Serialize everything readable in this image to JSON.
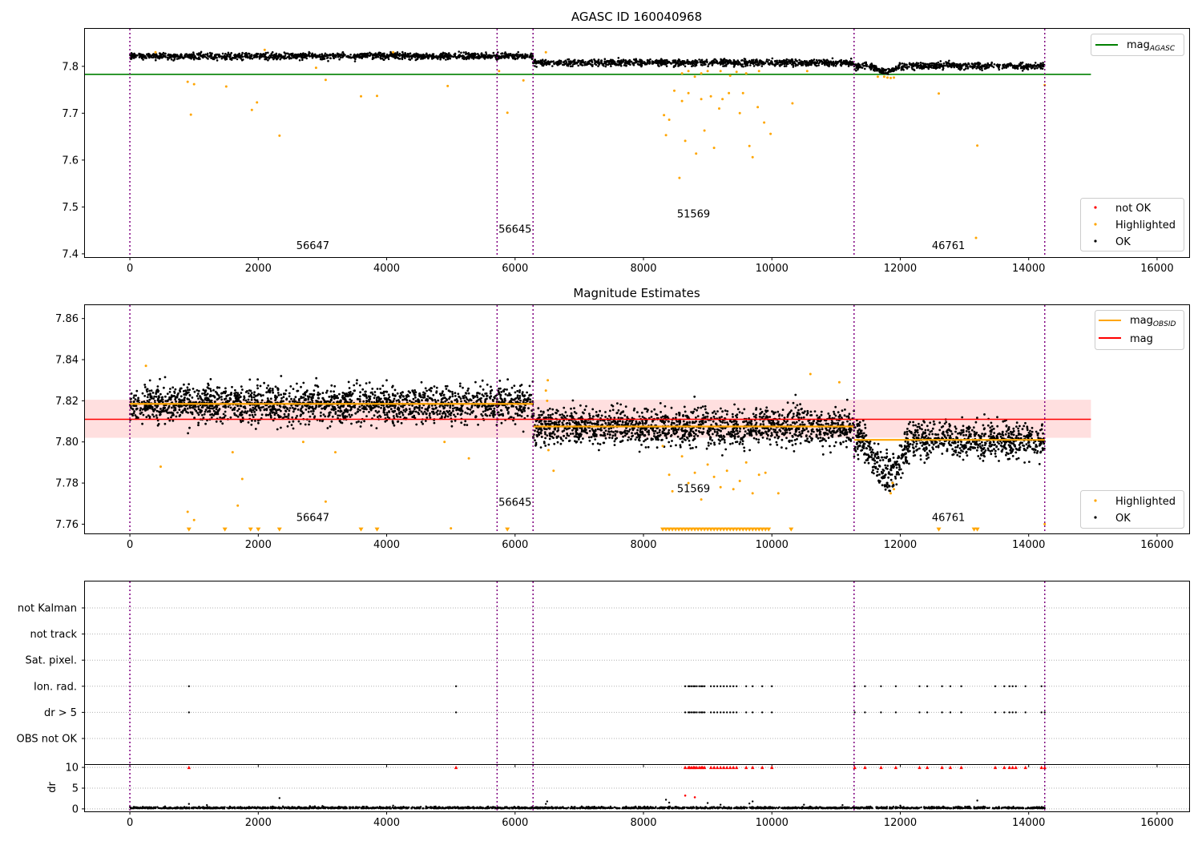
{
  "figure": {
    "colors": {
      "ok": "#000000",
      "highlighted": "#ffa500",
      "not_ok": "#ff0000",
      "agasc_line": "#008000",
      "mag_line": "#ff0000",
      "obsid_line": "#ffa500",
      "boundary": "#800080",
      "band": "#ffc0c0"
    },
    "obsid_boundaries": [
      0,
      5720,
      6280,
      11280,
      14250
    ]
  },
  "chart_data": [
    {
      "type": "scatter",
      "title": "AGASC ID 160040968",
      "xlabel": "",
      "ylabel": "",
      "xlim": [
        -700,
        16500
      ],
      "ylim": [
        7.393,
        7.88
      ],
      "xticks": [
        0,
        2000,
        4000,
        6000,
        8000,
        10000,
        12000,
        14000,
        16000
      ],
      "yticks": [
        7.4,
        7.5,
        7.6,
        7.7,
        7.8
      ],
      "grid": false,
      "legend_placement": "top-right and bottom-right",
      "legends": {
        "upper": [
          "mag_AGASC"
        ],
        "lower": [
          "not OK",
          "Highlighted",
          "OK"
        ]
      },
      "reference_lines": [
        {
          "name": "mag_AGASC",
          "y": 7.783,
          "x": [
            -700,
            14970
          ]
        }
      ],
      "obs_segments": [
        {
          "obsid": "56647",
          "x": [
            0,
            5720
          ],
          "mag": 7.822
        },
        {
          "obsid": "56645",
          "x": [
            5720,
            6280
          ],
          "mag": 7.822
        },
        {
          "obsid": "51569",
          "x": [
            6280,
            11280
          ],
          "mag": 7.808
        },
        {
          "obsid": "46761",
          "x": [
            11280,
            14250
          ],
          "mag": 7.801
        }
      ],
      "annotations": [
        {
          "text": "56647",
          "x": 2850,
          "y": 7.41
        },
        {
          "text": "56645",
          "x": 6000,
          "y": 7.445
        },
        {
          "text": "51569",
          "x": 8780,
          "y": 7.478
        },
        {
          "text": "46761",
          "x": 12750,
          "y": 7.41
        }
      ],
      "highlighted_points": [
        [
          900,
          7.767
        ],
        [
          950,
          7.697
        ],
        [
          1000,
          7.762
        ],
        [
          1500,
          7.757
        ],
        [
          1900,
          7.707
        ],
        [
          1980,
          7.723
        ],
        [
          2330,
          7.652
        ],
        [
          2900,
          7.797
        ],
        [
          3050,
          7.771
        ],
        [
          3600,
          7.736
        ],
        [
          3850,
          7.737
        ],
        [
          4950,
          7.758
        ],
        [
          5750,
          7.79
        ],
        [
          5880,
          7.701
        ],
        [
          6130,
          7.77
        ],
        [
          8320,
          7.696
        ],
        [
          8350,
          7.653
        ],
        [
          8400,
          7.686
        ],
        [
          8480,
          7.748
        ],
        [
          8560,
          7.562
        ],
        [
          8600,
          7.726
        ],
        [
          8650,
          7.641
        ],
        [
          8700,
          7.743
        ],
        [
          8820,
          7.614
        ],
        [
          8900,
          7.73
        ],
        [
          8950,
          7.663
        ],
        [
          9050,
          7.736
        ],
        [
          9100,
          7.626
        ],
        [
          9180,
          7.71
        ],
        [
          9230,
          7.73
        ],
        [
          9330,
          7.743
        ],
        [
          9500,
          7.7
        ],
        [
          9550,
          7.743
        ],
        [
          9650,
          7.63
        ],
        [
          9700,
          7.606
        ],
        [
          9780,
          7.713
        ],
        [
          9880,
          7.68
        ],
        [
          9980,
          7.656
        ],
        [
          10320,
          7.721
        ],
        [
          10550,
          7.79
        ],
        [
          11650,
          7.778
        ],
        [
          11750,
          7.778
        ],
        [
          11800,
          7.776
        ],
        [
          11850,
          7.775
        ],
        [
          11900,
          7.776
        ],
        [
          12600,
          7.742
        ],
        [
          13200,
          7.631
        ],
        [
          13180,
          7.434
        ],
        [
          14250,
          7.76
        ],
        [
          400,
          7.83
        ],
        [
          2100,
          7.835
        ],
        [
          4100,
          7.83
        ],
        [
          6480,
          7.83
        ],
        [
          9200,
          7.79
        ],
        [
          9350,
          7.78
        ],
        [
          9450,
          7.788
        ],
        [
          9600,
          7.785
        ],
        [
          8700,
          7.79
        ],
        [
          8800,
          7.778
        ],
        [
          8900,
          7.785
        ],
        [
          9000,
          7.79
        ],
        [
          8600,
          7.785
        ],
        [
          9800,
          7.79
        ]
      ]
    },
    {
      "type": "scatter",
      "title": "Magnitude Estimates",
      "xlabel": "",
      "ylabel": "",
      "xlim": [
        -700,
        16500
      ],
      "ylim": [
        7.7555,
        7.8665
      ],
      "xticks": [
        0,
        2000,
        4000,
        6000,
        8000,
        10000,
        12000,
        14000,
        16000
      ],
      "yticks": [
        7.76,
        7.78,
        7.8,
        7.82,
        7.84,
        7.86
      ],
      "grid": false,
      "legend_placement": "top-right and bottom-right",
      "legends": {
        "upper": [
          "mag_OBSID",
          "mag"
        ],
        "lower": [
          "Highlighted",
          "OK"
        ]
      },
      "mag": 7.811,
      "mag_band": [
        7.802,
        7.8205
      ],
      "band_x": [
        -700,
        14970
      ],
      "obsid_mag": [
        {
          "obsid": "56647",
          "x": [
            0,
            5720
          ],
          "mag": 7.8185
        },
        {
          "obsid": "56645",
          "x": [
            5720,
            6280
          ],
          "mag": 7.8185
        },
        {
          "obsid": "51569",
          "x": [
            6280,
            11280
          ],
          "mag": 7.8075
        },
        {
          "obsid": "46761",
          "x": [
            11280,
            14250
          ],
          "mag": 7.801
        }
      ],
      "annotations": [
        {
          "text": "56647",
          "x": 2850,
          "y": 7.7615
        },
        {
          "text": "56645",
          "x": 6000,
          "y": 7.769
        },
        {
          "text": "51569",
          "x": 8780,
          "y": 7.7755
        },
        {
          "text": "46761",
          "x": 12750,
          "y": 7.7615
        }
      ],
      "highlighted_points": [
        [
          250,
          7.837
        ],
        [
          480,
          7.788
        ],
        [
          900,
          7.766
        ],
        [
          1000,
          7.762
        ],
        [
          1600,
          7.795
        ],
        [
          1750,
          7.782
        ],
        [
          1680,
          7.769
        ],
        [
          3050,
          7.771
        ],
        [
          2700,
          7.8
        ],
        [
          3200,
          7.795
        ],
        [
          4900,
          7.8
        ],
        [
          5000,
          7.758
        ],
        [
          5280,
          7.792
        ],
        [
          6520,
          7.796
        ],
        [
          6600,
          7.786
        ],
        [
          8300,
          7.798
        ],
        [
          8400,
          7.784
        ],
        [
          8450,
          7.776
        ],
        [
          8600,
          7.793
        ],
        [
          8700,
          7.78
        ],
        [
          8800,
          7.785
        ],
        [
          8900,
          7.772
        ],
        [
          9000,
          7.789
        ],
        [
          9100,
          7.783
        ],
        [
          9200,
          7.778
        ],
        [
          9300,
          7.786
        ],
        [
          9400,
          7.777
        ],
        [
          9500,
          7.781
        ],
        [
          9600,
          7.79
        ],
        [
          9700,
          7.775
        ],
        [
          9800,
          7.784
        ],
        [
          9900,
          7.785
        ],
        [
          10100,
          7.775
        ],
        [
          10600,
          7.833
        ],
        [
          11050,
          7.829
        ],
        [
          11850,
          7.775
        ],
        [
          11900,
          7.777
        ],
        [
          11880,
          7.78
        ],
        [
          14250,
          7.76
        ],
        [
          6480,
          7.825
        ],
        [
          6500,
          7.82
        ],
        [
          6510,
          7.83
        ]
      ],
      "clipped_markers_x": [
        920,
        1480,
        1880,
        2000,
        2330,
        3600,
        3850,
        5880,
        8300,
        8350,
        8400,
        8450,
        8500,
        8550,
        8600,
        8650,
        8700,
        8750,
        8800,
        8850,
        8900,
        8950,
        9000,
        9050,
        9100,
        9150,
        9200,
        9250,
        9300,
        9350,
        9400,
        9450,
        9500,
        9550,
        9600,
        9650,
        9700,
        9750,
        9800,
        9850,
        9900,
        9950,
        10300,
        12600,
        13150,
        13200
      ]
    },
    {
      "type": "scatter",
      "title": "",
      "xlabel": "",
      "ylabel": "",
      "xlim": [
        -700,
        16500
      ],
      "yticks": [
        "not Kalman",
        "not track",
        "Sat. pixel.",
        "Ion. rad.",
        "dr > 5",
        "OBS not OK"
      ],
      "grid": true,
      "flag_rows": {
        "Ion. rad.": [
          920,
          5080,
          8650,
          8700,
          8720,
          8750,
          8780,
          8800,
          8830,
          8870,
          8900,
          8920,
          8950,
          9050,
          9100,
          9150,
          9200,
          9250,
          9300,
          9350,
          9400,
          9450,
          9600,
          9700,
          9850,
          10000,
          11290,
          11450,
          11700,
          11930,
          12300,
          12420,
          12650,
          12780,
          12950,
          13480,
          13620,
          13700,
          13750,
          13800,
          13950,
          14200,
          14250
        ],
        "dr > 5": [
          920,
          5080,
          8650,
          8700,
          8720,
          8750,
          8780,
          8800,
          8830,
          8870,
          8900,
          8920,
          8950,
          9050,
          9100,
          9150,
          9200,
          9250,
          9300,
          9350,
          9400,
          9450,
          9600,
          9700,
          9850,
          10000,
          11290,
          11450,
          11700,
          11930,
          12300,
          12420,
          12650,
          12780,
          12950,
          13480,
          13620,
          13700,
          13750,
          13800,
          13950,
          14200,
          14250
        ]
      }
    },
    {
      "type": "scatter",
      "title": "",
      "xlabel": "",
      "ylabel": "dr",
      "xlim": [
        -700,
        16500
      ],
      "ylim": [
        -0.6,
        10.6
      ],
      "xticks": [
        0,
        2000,
        4000,
        6000,
        8000,
        10000,
        12000,
        14000,
        16000
      ],
      "yticks": [
        0,
        5,
        10
      ],
      "grid": true,
      "capped_points_x": [
        920,
        5080,
        8650,
        8700,
        8720,
        8750,
        8780,
        8800,
        8830,
        8870,
        8900,
        8920,
        8950,
        9050,
        9100,
        9150,
        9200,
        9250,
        9300,
        9350,
        9400,
        9450,
        9600,
        9700,
        9850,
        10000,
        11290,
        11450,
        11700,
        11930,
        12300,
        12420,
        12650,
        12780,
        12950,
        13480,
        13620,
        13700,
        13750,
        13800,
        13950,
        14200,
        14250
      ],
      "red_points": [
        [
          8650,
          3.2
        ],
        [
          8800,
          2.8
        ]
      ],
      "outlier_points": [
        [
          920,
          1.2
        ],
        [
          2330,
          2.6
        ],
        [
          6500,
          1.8
        ],
        [
          6480,
          1.2
        ],
        [
          8350,
          2.2
        ],
        [
          8400,
          1.5
        ],
        [
          9000,
          1.4
        ],
        [
          9200,
          1.0
        ],
        [
          9650,
          1.3
        ],
        [
          9700,
          1.8
        ],
        [
          13200,
          2.0
        ],
        [
          4100,
          0.8
        ],
        [
          10500,
          1.0
        ],
        [
          11100,
          0.9
        ],
        [
          12000,
          0.8
        ],
        [
          1200,
          0.9
        ],
        [
          3000,
          0.7
        ]
      ]
    }
  ]
}
